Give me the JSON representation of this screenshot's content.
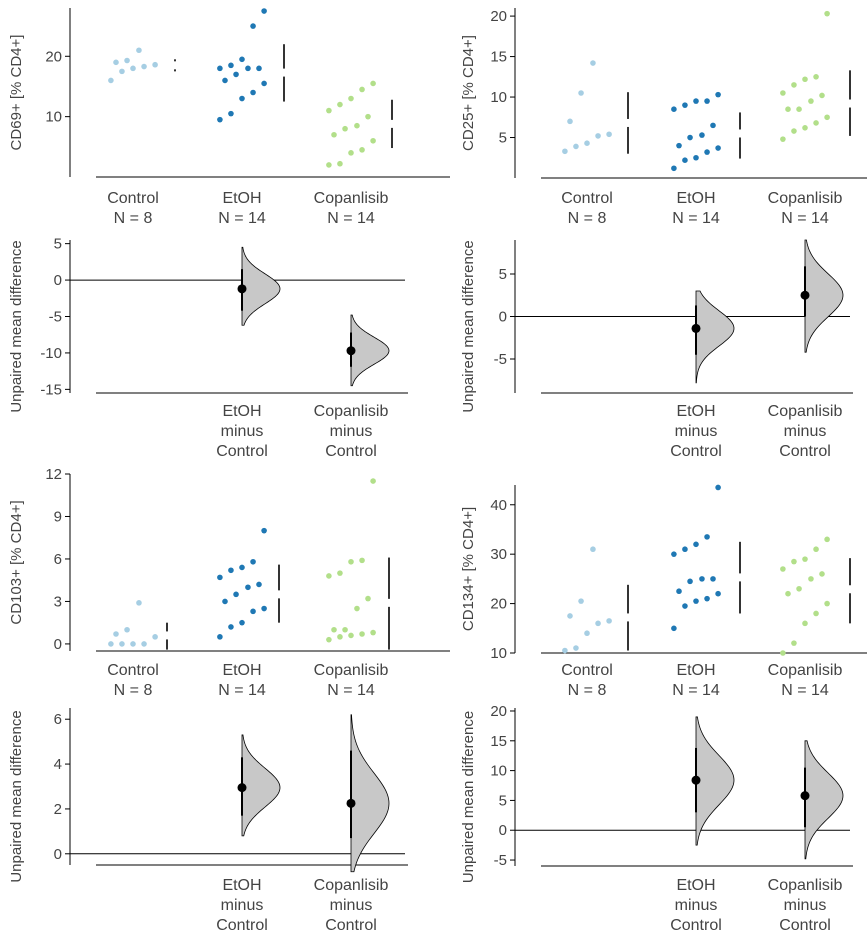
{
  "colors": {
    "control": "#a6cee3",
    "etoh": "#1f78b4",
    "copanlisib": "#b2df8a",
    "axis": "#000000",
    "text": "#444444",
    "curve_fill": "#c8c8c8"
  },
  "chart_data": [
    {
      "type": "scatter",
      "ylabel": "CD69+ [% CD4+]",
      "ylim": [
        0,
        28
      ],
      "ticks": [
        10,
        20
      ],
      "groups": [
        {
          "label": "Control",
          "n_label": "N = 8",
          "color": "control",
          "values": [
            16,
            17.5,
            18,
            18.3,
            18.6,
            19,
            19.3,
            21
          ],
          "mean": 18.5,
          "sd_low": 17.5,
          "sd_high": 19.5
        },
        {
          "label": "EtOH",
          "n_label": "N = 14",
          "color": "etoh",
          "values": [
            9.5,
            10.5,
            13,
            14,
            15.5,
            16,
            17,
            18,
            18,
            18,
            18.5,
            19.5,
            25,
            27.5
          ],
          "mean": 17.3,
          "sd_low": 12.5,
          "sd_high": 22
        },
        {
          "label": "Copanlisib",
          "n_label": "N = 14",
          "color": "copanlisib",
          "values": [
            2,
            2.2,
            4,
            4.5,
            6,
            7,
            8,
            8.5,
            10,
            11,
            12,
            13,
            14.5,
            15.5
          ],
          "mean": 8.8,
          "sd_low": 4.8,
          "sd_high": 12.8
        }
      ]
    },
    {
      "type": "scatter",
      "ylabel": "CD25+ [% CD4+]",
      "ylim": [
        0,
        21
      ],
      "ticks": [
        5,
        10,
        15,
        20
      ],
      "groups": [
        {
          "label": "Control",
          "n_label": "N = 8",
          "color": "control",
          "values": [
            3.3,
            3.9,
            4.3,
            5.2,
            5.4,
            7,
            10.5,
            14.2
          ],
          "mean": 6.8,
          "sd_low": 3,
          "sd_high": 10.6
        },
        {
          "label": "EtOH",
          "n_label": "N = 14",
          "color": "etoh",
          "values": [
            1.2,
            2.2,
            2.5,
            3.2,
            3.7,
            4,
            5,
            5.3,
            6.5,
            8.5,
            9,
            9.5,
            9.5,
            10.3
          ],
          "mean": 5.5,
          "sd_low": 2.4,
          "sd_high": 8.1
        },
        {
          "label": "Copanlisib",
          "n_label": "N = 14",
          "color": "copanlisib",
          "values": [
            4.8,
            5.8,
            6.2,
            6.8,
            7.5,
            8.5,
            8.5,
            9.5,
            10.2,
            10.5,
            11.5,
            12.2,
            12.5,
            20.3
          ],
          "mean": 9.2,
          "sd_low": 5.2,
          "sd_high": 13.3
        }
      ]
    },
    {
      "type": "scatter",
      "ylabel": "CD103+ [% CD4+]",
      "ylim": [
        -0.5,
        12
      ],
      "ticks": [
        0,
        3,
        6,
        9,
        12
      ],
      "groups": [
        {
          "label": "Control",
          "n_label": "N = 8",
          "color": "control",
          "values": [
            0,
            0,
            0,
            0,
            0.5,
            0.7,
            1,
            2.9
          ],
          "mean": 0.6,
          "sd_low": -0.4,
          "sd_high": 1.5
        },
        {
          "label": "EtOH",
          "n_label": "N = 14",
          "color": "etoh",
          "values": [
            0.5,
            1.2,
            1.5,
            2.3,
            2.5,
            3,
            3.5,
            4,
            4.2,
            4.7,
            5.2,
            5.4,
            5.8,
            8
          ],
          "mean": 3.5,
          "sd_low": 1.5,
          "sd_high": 5.6
        },
        {
          "label": "Copanlisib",
          "n_label": "N = 14",
          "color": "copanlisib",
          "values": [
            0.3,
            0.5,
            0.6,
            0.7,
            0.8,
            1,
            1,
            2.5,
            3.2,
            4.8,
            5,
            5.8,
            5.9,
            11.5
          ],
          "mean": 2.9,
          "sd_low": -0.4,
          "sd_high": 6.1
        }
      ]
    },
    {
      "type": "scatter",
      "ylabel": "CD134+ [% CD4+]",
      "ylim": [
        10,
        44
      ],
      "ticks": [
        10,
        20,
        30,
        40
      ],
      "groups": [
        {
          "label": "Control",
          "n_label": "N = 8",
          "color": "control",
          "values": [
            10.5,
            11,
            14,
            16,
            16.5,
            17.5,
            20.5,
            31
          ],
          "mean": 17.2,
          "sd_low": 10.5,
          "sd_high": 23.8
        },
        {
          "label": "EtOH",
          "n_label": "N = 14",
          "color": "etoh",
          "values": [
            15,
            19.5,
            20.5,
            21,
            22,
            22.5,
            24.5,
            25,
            25,
            30,
            31,
            32,
            33.5,
            43.5
          ],
          "mean": 25.3,
          "sd_low": 18,
          "sd_high": 32.5
        },
        {
          "label": "Copanlisib",
          "n_label": "N = 14",
          "color": "copanlisib",
          "values": [
            10,
            12,
            16,
            18,
            20,
            22,
            23,
            25,
            26,
            27,
            28.5,
            29,
            31,
            33
          ],
          "mean": 22.9,
          "sd_low": 16,
          "sd_high": 29.2
        }
      ]
    }
  ],
  "diff_charts": [
    {
      "ylabel": "Unpaired mean difference",
      "ylim": [
        -15.5,
        5.5
      ],
      "ticks": [
        5,
        0,
        -5,
        -10,
        -15
      ],
      "tick_labels": [
        "5",
        "0",
        "-5",
        "-10",
        "-15"
      ],
      "comparisons": [
        {
          "label": [
            "EtOH",
            "minus",
            "Control"
          ],
          "mean": -1.2,
          "ci_low": -4.2,
          "ci_high": 1.5,
          "dist_low": -6.2,
          "dist_high": 4.5
        },
        {
          "label": [
            "Copanlisib",
            "minus",
            "Control"
          ],
          "mean": -9.7,
          "ci_low": -11.9,
          "ci_high": -7.2,
          "dist_low": -14.5,
          "dist_high": -4.8
        }
      ]
    },
    {
      "ylabel": "Unpaired mean difference",
      "ylim": [
        -9,
        9
      ],
      "ticks": [
        5,
        0,
        -5
      ],
      "tick_labels": [
        "5",
        "0",
        "-5"
      ],
      "comparisons": [
        {
          "label": [
            "EtOH",
            "minus",
            "Control"
          ],
          "mean": -1.4,
          "ci_low": -4.5,
          "ci_high": 1.3,
          "dist_low": -7.8,
          "dist_high": 3
        },
        {
          "label": [
            "Copanlisib",
            "minus",
            "Control"
          ],
          "mean": 2.5,
          "ci_low": 0,
          "ci_high": 5.9,
          "dist_low": -4.2,
          "dist_high": 9
        }
      ]
    },
    {
      "ylabel": "Unpaired mean difference",
      "ylim": [
        -0.5,
        6.5
      ],
      "ticks": [
        0,
        2,
        4,
        6
      ],
      "tick_labels": [
        "0",
        "2",
        "4",
        "6"
      ],
      "comparisons": [
        {
          "label": [
            "EtOH",
            "minus",
            "Control"
          ],
          "mean": 2.95,
          "ci_low": 1.7,
          "ci_high": 4.3,
          "dist_low": 0.8,
          "dist_high": 5.3
        },
        {
          "label": [
            "Copanlisib",
            "minus",
            "Control"
          ],
          "mean": 2.25,
          "ci_low": 0.7,
          "ci_high": 4.6,
          "dist_low": -0.8,
          "dist_high": 6.2
        }
      ]
    },
    {
      "ylabel": "Unpaired mean difference",
      "ylim": [
        -6,
        20.5
      ],
      "ticks": [
        20,
        15,
        10,
        5,
        0,
        -5
      ],
      "tick_labels": [
        "20",
        "15",
        "10",
        "5",
        "0",
        "-5"
      ],
      "comparisons": [
        {
          "label": [
            "EtOH",
            "minus",
            "Control"
          ],
          "mean": 8.4,
          "ci_low": 3,
          "ci_high": 13.8,
          "dist_low": -2.5,
          "dist_high": 19
        },
        {
          "label": [
            "Copanlisib",
            "minus",
            "Control"
          ],
          "mean": 5.8,
          "ci_low": 0.5,
          "ci_high": 10.5,
          "dist_low": -4.8,
          "dist_high": 15
        }
      ]
    }
  ]
}
